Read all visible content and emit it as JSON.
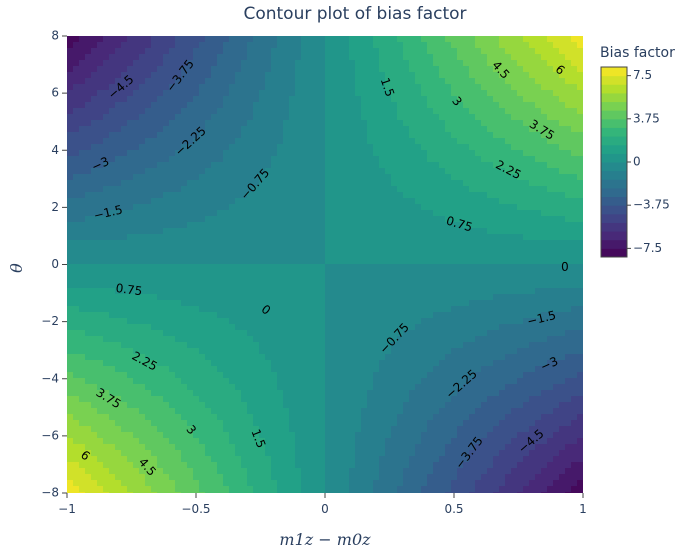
{
  "chart_data": {
    "type": "contour",
    "title": "Contour plot of bias factor",
    "xlabel": "m1z − m0z",
    "ylabel": "θ",
    "xlim": [
      -1,
      1
    ],
    "ylim": [
      -8,
      8
    ],
    "x_ticks": [
      "−1",
      "−0.5",
      "0",
      "0.5",
      "1"
    ],
    "y_ticks": [
      "−8",
      "−6",
      "−4",
      "−2",
      "0",
      "2",
      "4",
      "6",
      "8"
    ],
    "colorbar": {
      "title": "Bias factor",
      "range": [
        -8.25,
        8.25
      ],
      "ticks": [
        "7.5",
        "3.75",
        "0",
        "−3.75",
        "−7.5"
      ],
      "colors": [
        "#440154",
        "#482878",
        "#3e4989",
        "#31688e",
        "#26828e",
        "#1f9e89",
        "#35b779",
        "#6ece58",
        "#b5de2b",
        "#fde725"
      ]
    },
    "contour_labels": [
      {
        "text": "−4.5",
        "x": -0.79,
        "y": 6.2
      },
      {
        "text": "−3.75",
        "x": -0.56,
        "y": 6.6
      },
      {
        "text": "−2.25",
        "x": -0.52,
        "y": 4.3
      },
      {
        "text": "−3",
        "x": -0.87,
        "y": 3.5
      },
      {
        "text": "−1.5",
        "x": -0.84,
        "y": 1.8
      },
      {
        "text": "−0.75",
        "x": -0.27,
        "y": 2.8
      },
      {
        "text": "1.5",
        "x": 0.24,
        "y": 6.2
      },
      {
        "text": "3",
        "x": 0.51,
        "y": 5.7
      },
      {
        "text": "4.5",
        "x": 0.68,
        "y": 6.8
      },
      {
        "text": "6",
        "x": 0.91,
        "y": 6.8
      },
      {
        "text": "3.75",
        "x": 0.84,
        "y": 4.7
      },
      {
        "text": "2.25",
        "x": 0.71,
        "y": 3.3
      },
      {
        "text": "0.75",
        "x": 0.52,
        "y": 1.4
      },
      {
        "text": "0",
        "x": 0.93,
        "y": -0.1
      },
      {
        "text": "0.75",
        "x": -0.76,
        "y": -0.9
      },
      {
        "text": "0",
        "x": -0.23,
        "y": -1.6
      },
      {
        "text": "2.25",
        "x": -0.7,
        "y": -3.4
      },
      {
        "text": "3.75",
        "x": -0.84,
        "y": -4.7
      },
      {
        "text": "3",
        "x": -0.52,
        "y": -5.8
      },
      {
        "text": "1.5",
        "x": -0.26,
        "y": -6.1
      },
      {
        "text": "6",
        "x": -0.93,
        "y": -6.7
      },
      {
        "text": "4.5",
        "x": -0.69,
        "y": -7.1
      },
      {
        "text": "−0.75",
        "x": 0.27,
        "y": -2.6
      },
      {
        "text": "−1.5",
        "x": 0.84,
        "y": -1.9
      },
      {
        "text": "−2.25",
        "x": 0.53,
        "y": -4.2
      },
      {
        "text": "−3",
        "x": 0.87,
        "y": -3.5
      },
      {
        "text": "−3.75",
        "x": 0.56,
        "y": -6.6
      },
      {
        "text": "−4.5",
        "x": 0.8,
        "y": -6.2
      }
    ]
  }
}
